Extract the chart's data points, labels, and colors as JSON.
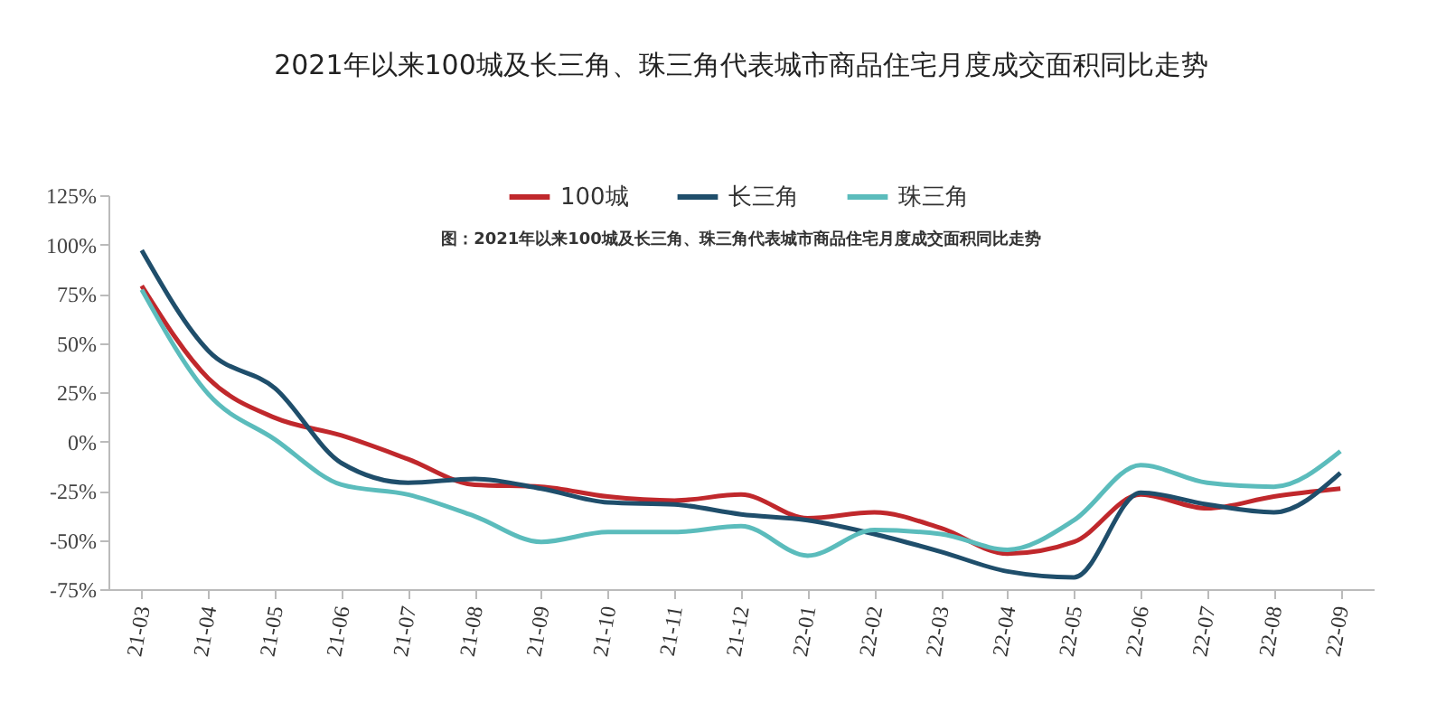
{
  "chart_data": {
    "type": "line",
    "title": "2021年以来100城及长三角、珠三角代表城市商品住宅月度成交面积同比走势",
    "annotations": [
      "图：2021年以来100城及长三角、珠三角代表城市商品住宅月度成交面积同比走势"
    ],
    "categories": [
      "21-03",
      "21-04",
      "21-05",
      "21-06",
      "21-07",
      "21-08",
      "21-09",
      "21-10",
      "21-11",
      "21-12",
      "22-01",
      "22-02",
      "22-03",
      "22-04",
      "22-05",
      "22-06",
      "22-07",
      "22-08",
      "22-09"
    ],
    "series": [
      {
        "name": "100城",
        "color": "#c0282c",
        "values": [
          79,
          32,
          12,
          3,
          -9,
          -22,
          -23,
          -28,
          -30,
          -27,
          -39,
          -36,
          -44,
          -57,
          -51,
          -27,
          -34,
          -28,
          -24
        ]
      },
      {
        "name": "长三角",
        "color": "#1f4e6b",
        "values": [
          97,
          46,
          27,
          -11,
          -21,
          -19,
          -24,
          -31,
          -32,
          -37,
          -40,
          -47,
          -56,
          -66,
          -69,
          -26,
          -32,
          -36,
          -16
        ]
      },
      {
        "name": "珠三角",
        "color": "#5bbcbc",
        "values": [
          77,
          24,
          1,
          -22,
          -27,
          -38,
          -51,
          -46,
          -46,
          -43,
          -58,
          -45,
          -47,
          -55,
          -40,
          -12,
          -21,
          -23,
          -5
        ]
      }
    ],
    "ylim": [
      -75,
      125
    ],
    "yticks": [
      {
        "value": 125,
        "label": "125%"
      },
      {
        "value": 100,
        "label": "100%"
      },
      {
        "value": 75,
        "label": "75%"
      },
      {
        "value": 50,
        "label": "50%"
      },
      {
        "value": 25,
        "label": "25%"
      },
      {
        "value": 0,
        "label": "0%"
      },
      {
        "value": -25,
        "label": "-25%"
      },
      {
        "value": -50,
        "label": "-50%"
      },
      {
        "value": -75,
        "label": "-75%"
      }
    ],
    "legend": "top",
    "grid": false,
    "line_style": "solid"
  }
}
